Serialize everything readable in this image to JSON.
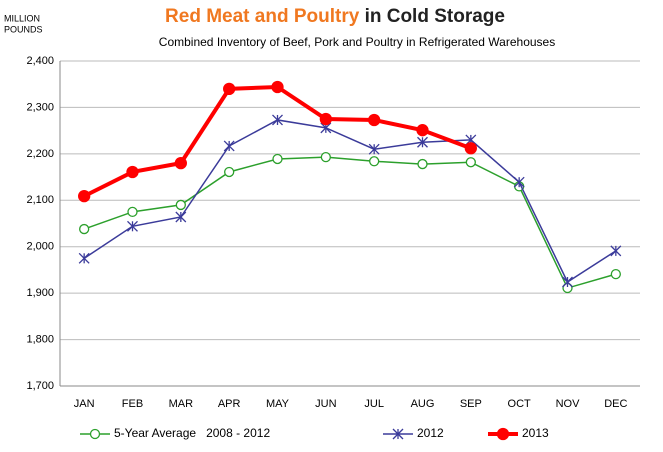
{
  "chart_data": {
    "type": "line",
    "title": [
      "Red Meat and Poultry",
      "in Cold Storage"
    ],
    "subtitle": "Combined Inventory of Beef, Pork and Poultry in Refrigerated Warehouses",
    "y_label": [
      "MILLION",
      "POUNDS"
    ],
    "categories": [
      "JAN",
      "FEB",
      "MAR",
      "APR",
      "MAY",
      "JUN",
      "JUL",
      "AUG",
      "SEP",
      "OCT",
      "NOV",
      "DEC"
    ],
    "series": [
      {
        "name": "5-Year Average   2008 - 2012",
        "color": "#2ca02c",
        "marker": "open-circle",
        "values": [
          2038,
          2075,
          2090,
          2161,
          2189,
          2193,
          2184,
          2178,
          2182,
          2130,
          1911,
          1941
        ]
      },
      {
        "name": "2012",
        "color": "#3b3b9a",
        "marker": "star",
        "values": [
          1975,
          2044,
          2064,
          2217,
          2273,
          2256,
          2210,
          2225,
          2230,
          2139,
          1924,
          1991
        ]
      },
      {
        "name": "2013",
        "color": "#ff0000",
        "marker": "filled-circle",
        "values": [
          2109,
          2161,
          2180,
          2340,
          2344,
          2275,
          2273,
          2251,
          2212,
          null,
          null,
          null
        ]
      }
    ],
    "ylim": [
      1700,
      2400
    ],
    "yticks": [
      {
        "value": 1700,
        "label": "1,700"
      },
      {
        "value": 1800,
        "label": "1,800"
      },
      {
        "value": 1900,
        "label": "1,900"
      },
      {
        "value": 2000,
        "label": "2,000"
      },
      {
        "value": 2100,
        "label": "2,100"
      },
      {
        "value": 2200,
        "label": "2,200"
      },
      {
        "value": 2300,
        "label": "2,300"
      },
      {
        "value": 2400,
        "label": "2,400"
      }
    ],
    "grid": true,
    "legend": "bottom"
  }
}
